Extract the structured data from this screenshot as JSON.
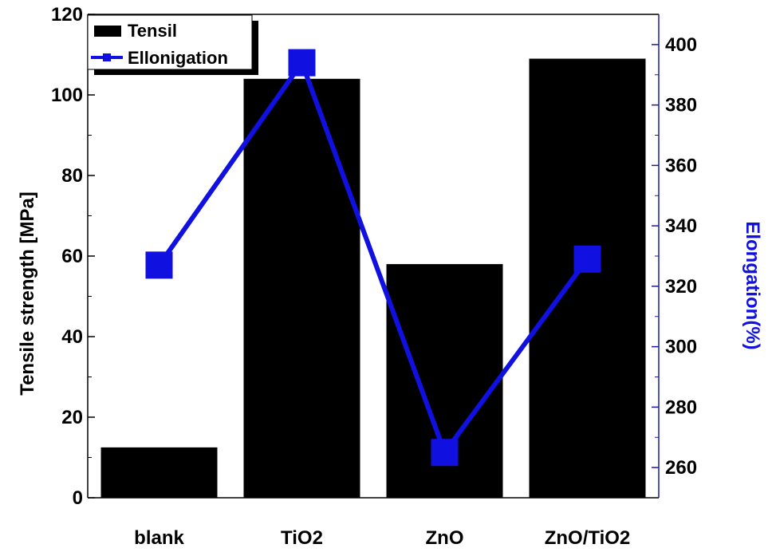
{
  "chart_data": {
    "type": "bar",
    "categories": [
      "blank",
      "TiO2",
      "ZnO",
      "ZnO/TiO2"
    ],
    "series": [
      {
        "name": "Tensil",
        "kind": "bar",
        "axis": "left",
        "color": "#000000",
        "values": [
          12.5,
          104,
          58,
          109
        ]
      },
      {
        "name": "Ellonigation",
        "kind": "line",
        "axis": "right",
        "color": "#1010e0",
        "values": [
          327,
          394,
          265,
          329
        ]
      }
    ],
    "ylabel": "Tensile strength [MPa]",
    "ylabel2": "Elongation(%)",
    "ylim": [
      0,
      120
    ],
    "y2lim": [
      250,
      410
    ],
    "yticks": [
      "0",
      "20",
      "40",
      "60",
      "80",
      "100",
      "120"
    ],
    "y2ticks": [
      "260",
      "280",
      "300",
      "320",
      "340",
      "360",
      "380",
      "400"
    ],
    "grid": false,
    "legend": "top-left"
  },
  "colors": {
    "bar": "#000000",
    "line": "#1010e0",
    "right_axis": "#1a1aa8"
  }
}
